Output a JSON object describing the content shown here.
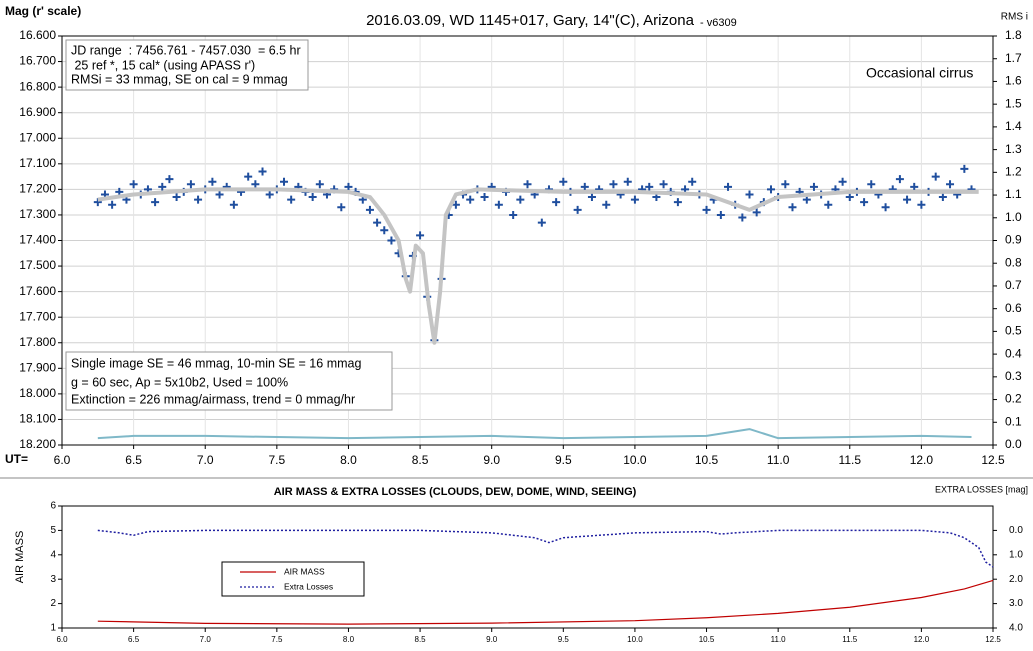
{
  "chart_data": [
    {
      "type": "scatter",
      "title": "2016.03.09,  WD 1145+017,  Gary, 14\"(C), Arizona",
      "subtitle": "- v6309",
      "y_label": "Mag (r' scale)",
      "y2_label": "RMS i",
      "x_label": "UT=",
      "annotation": "Occasional cirrus",
      "info_boxes": [
        [
          "JD range  : 7456.761 - 7457.030  = 6.5 hr",
          " 25 ref *, 15 cal* (using APASS r')",
          "RMSi = 33 mmag, SE on cal = 9 mmag"
        ],
        [
          "Single image SE = 46 mmag, 10-min SE = 16 mmag",
          "g = 60 sec, Ap = 5x10b2, Used = 100%",
          "Extinction = 226 mmag/airmass, trend = 0 mmag/hr"
        ]
      ],
      "xlim": [
        6,
        12.5
      ],
      "xticks": [
        {
          "value": 6,
          "label": "6.0"
        },
        6.5,
        {
          "value": 7,
          "label": "7.0"
        },
        7.5,
        {
          "value": 8,
          "label": "8.0"
        },
        8.5,
        {
          "value": 9,
          "label": "9.0"
        },
        9.5,
        {
          "value": 10,
          "label": "10.0"
        },
        10.5,
        {
          "value": 11,
          "label": "11.0"
        },
        11.5,
        {
          "value": 12,
          "label": "12.0"
        },
        12.5
      ],
      "ylim": [
        16.6,
        18.2
      ],
      "y_inverted": true,
      "yticks": [
        {
          "value": 16.6,
          "label": "16.600"
        },
        {
          "value": 16.7,
          "label": "16.700"
        },
        {
          "value": 16.8,
          "label": "16.800"
        },
        {
          "value": 16.9,
          "label": "16.900"
        },
        {
          "value": 17.0,
          "label": "17.000"
        },
        {
          "value": 17.1,
          "label": "17.100"
        },
        {
          "value": 17.2,
          "label": "17.200"
        },
        {
          "value": 17.3,
          "label": "17.300"
        },
        {
          "value": 17.4,
          "label": "17.400"
        },
        {
          "value": 17.5,
          "label": "17.500"
        },
        {
          "value": 17.6,
          "label": "17.600"
        },
        {
          "value": 17.7,
          "label": "17.700"
        },
        {
          "value": 17.8,
          "label": "17.800"
        },
        {
          "value": 17.9,
          "label": "17.900"
        },
        {
          "value": 18.0,
          "label": "18.000"
        },
        {
          "value": 18.1,
          "label": "18.100"
        },
        {
          "value": 18.2,
          "label": "18.200"
        }
      ],
      "y2lim": [
        0,
        1.8
      ],
      "y2ticks": [
        {
          "value": 0,
          "label": "0.0"
        },
        0.1,
        0.2,
        0.3,
        0.4,
        0.5,
        0.6,
        0.7,
        0.8,
        0.9,
        {
          "value": 1,
          "label": "1.0"
        },
        1.1,
        1.2,
        1.3,
        1.4,
        1.5,
        1.6,
        1.7,
        1.8
      ],
      "grid": true,
      "series": [
        {
          "kind": "scatter",
          "color": "#1f4e9e",
          "x": [
            6.25,
            6.3,
            6.35,
            6.4,
            6.45,
            6.5,
            6.55,
            6.6,
            6.65,
            6.7,
            6.75,
            6.8,
            6.85,
            6.9,
            6.95,
            7.0,
            7.05,
            7.1,
            7.15,
            7.2,
            7.25,
            7.3,
            7.35,
            7.4,
            7.45,
            7.5,
            7.55,
            7.6,
            7.65,
            7.7,
            7.75,
            7.8,
            7.85,
            7.9,
            7.95,
            8.0,
            8.05,
            8.1,
            8.15,
            8.2,
            8.25,
            8.3,
            8.35,
            8.4,
            8.45,
            8.5,
            8.55,
            8.6,
            8.65,
            8.7,
            8.75,
            8.8,
            8.85,
            8.9,
            8.95,
            9.0,
            9.05,
            9.1,
            9.15,
            9.2,
            9.25,
            9.3,
            9.35,
            9.4,
            9.45,
            9.5,
            9.55,
            9.6,
            9.65,
            9.7,
            9.75,
            9.8,
            9.85,
            9.9,
            9.95,
            10.0,
            10.05,
            10.1,
            10.15,
            10.2,
            10.25,
            10.3,
            10.35,
            10.4,
            10.45,
            10.5,
            10.55,
            10.6,
            10.65,
            10.7,
            10.75,
            10.8,
            10.85,
            10.9,
            10.95,
            11.0,
            11.05,
            11.1,
            11.15,
            11.2,
            11.25,
            11.3,
            11.35,
            11.4,
            11.45,
            11.5,
            11.55,
            11.6,
            11.65,
            11.7,
            11.75,
            11.8,
            11.85,
            11.9,
            11.95,
            12.0,
            12.05,
            12.1,
            12.15,
            12.2,
            12.25,
            12.3,
            12.35
          ],
          "values": [
            17.25,
            17.22,
            17.26,
            17.21,
            17.24,
            17.18,
            17.22,
            17.2,
            17.25,
            17.19,
            17.16,
            17.23,
            17.21,
            17.18,
            17.24,
            17.2,
            17.17,
            17.22,
            17.19,
            17.26,
            17.21,
            17.15,
            17.18,
            17.13,
            17.22,
            17.2,
            17.17,
            17.24,
            17.19,
            17.21,
            17.23,
            17.18,
            17.22,
            17.2,
            17.27,
            17.19,
            17.21,
            17.24,
            17.28,
            17.33,
            17.36,
            17.4,
            17.45,
            17.54,
            17.46,
            17.38,
            17.62,
            17.79,
            17.55,
            17.3,
            17.26,
            17.22,
            17.24,
            17.2,
            17.23,
            17.19,
            17.26,
            17.21,
            17.3,
            17.24,
            17.18,
            17.22,
            17.33,
            17.2,
            17.25,
            17.17,
            17.21,
            17.28,
            17.19,
            17.23,
            17.2,
            17.26,
            17.18,
            17.22,
            17.17,
            17.24,
            17.2,
            17.19,
            17.23,
            17.18,
            17.21,
            17.25,
            17.2,
            17.17,
            17.22,
            17.28,
            17.24,
            17.3,
            17.19,
            17.26,
            17.31,
            17.22,
            17.29,
            17.25,
            17.2,
            17.23,
            17.18,
            17.27,
            17.21,
            17.24,
            17.19,
            17.22,
            17.26,
            17.2,
            17.17,
            17.23,
            17.21,
            17.25,
            17.18,
            17.22,
            17.27,
            17.2,
            17.16,
            17.24,
            17.19,
            17.26,
            17.21,
            17.15,
            17.23,
            17.18,
            17.22,
            17.12,
            17.2
          ]
        },
        {
          "kind": "line",
          "color": "#c4c4c4",
          "width": 4,
          "x": [
            6.25,
            6.5,
            7.0,
            7.5,
            8.0,
            8.15,
            8.25,
            8.35,
            8.4,
            8.43,
            8.47,
            8.52,
            8.56,
            8.6,
            8.64,
            8.68,
            8.75,
            8.9,
            9.5,
            10.0,
            10.5,
            10.8,
            11.0,
            11.5,
            12.0,
            12.4
          ],
          "values": [
            17.24,
            17.22,
            17.2,
            17.2,
            17.21,
            17.23,
            17.3,
            17.4,
            17.55,
            17.6,
            17.42,
            17.45,
            17.65,
            17.8,
            17.6,
            17.3,
            17.22,
            17.2,
            17.21,
            17.21,
            17.22,
            17.28,
            17.23,
            17.21,
            17.21,
            17.21
          ]
        },
        {
          "kind": "line",
          "color": "#7fb8c8",
          "width": 2,
          "axis": "y2",
          "x": [
            6.25,
            6.5,
            7.0,
            7.5,
            8.0,
            8.5,
            9.0,
            9.5,
            10.0,
            10.5,
            10.7,
            10.8,
            10.9,
            11.0,
            11.5,
            12.0,
            12.35
          ],
          "values": [
            0.03,
            0.04,
            0.04,
            0.035,
            0.03,
            0.035,
            0.04,
            0.03,
            0.035,
            0.04,
            0.06,
            0.07,
            0.05,
            0.03,
            0.035,
            0.04,
            0.035
          ]
        }
      ]
    },
    {
      "type": "line",
      "title": "AIR MASS & EXTRA LOSSES (CLOUDS, DEW, DOME, WIND, SEEING)",
      "y_label": "AIR MASS",
      "y2_label": "EXTRA LOSSES [mag]",
      "xlim": [
        6,
        12.5
      ],
      "xticks": [
        {
          "value": 6,
          "label": "6.0"
        },
        6.5,
        {
          "value": 7,
          "label": "7.0"
        },
        7.5,
        {
          "value": 8,
          "label": "8.0"
        },
        8.5,
        {
          "value": 9,
          "label": "9.0"
        },
        9.5,
        {
          "value": 10,
          "label": "10.0"
        },
        10.5,
        {
          "value": 11,
          "label": "11.0"
        },
        11.5,
        {
          "value": 12,
          "label": "12.0"
        },
        12.5
      ],
      "ylim": [
        1,
        6
      ],
      "yticks": [
        1,
        2,
        3,
        4,
        5,
        6
      ],
      "y2lim": [
        -1,
        4
      ],
      "y2_inverted": true,
      "y2ticks": [
        {
          "value": 0,
          "label": "0.0"
        },
        {
          "value": 1,
          "label": "1.0"
        },
        {
          "value": 2,
          "label": "2.0"
        },
        {
          "value": 3,
          "label": "3.0"
        },
        {
          "value": 4,
          "label": "4.0"
        }
      ],
      "grid": false,
      "legend": "left",
      "series": [
        {
          "name": "AIR MASS",
          "kind": "line",
          "color": "#c00000",
          "width": 1.2,
          "x": [
            6.25,
            7.0,
            8.0,
            9.0,
            10.0,
            10.5,
            11.0,
            11.5,
            12.0,
            12.3,
            12.5
          ],
          "values": [
            1.28,
            1.19,
            1.16,
            1.2,
            1.3,
            1.42,
            1.6,
            1.85,
            2.25,
            2.6,
            2.95
          ]
        },
        {
          "name": "Extra Losses",
          "kind": "dotted",
          "color": "#1f1fa0",
          "width": 1.5,
          "axis": "y2",
          "x": [
            6.25,
            6.4,
            6.5,
            6.6,
            7.0,
            8.0,
            8.5,
            9.0,
            9.3,
            9.4,
            9.5,
            10.0,
            10.5,
            10.6,
            10.7,
            11.0,
            11.5,
            12.0,
            12.2,
            12.3,
            12.4,
            12.45,
            12.5
          ],
          "values": [
            0,
            0.1,
            0.2,
            0.05,
            0,
            0,
            0,
            0.1,
            0.3,
            0.5,
            0.3,
            0.1,
            0.05,
            0.15,
            0.1,
            0,
            0,
            0,
            0.1,
            0.3,
            0.7,
            1.3,
            1.5
          ]
        }
      ]
    }
  ]
}
